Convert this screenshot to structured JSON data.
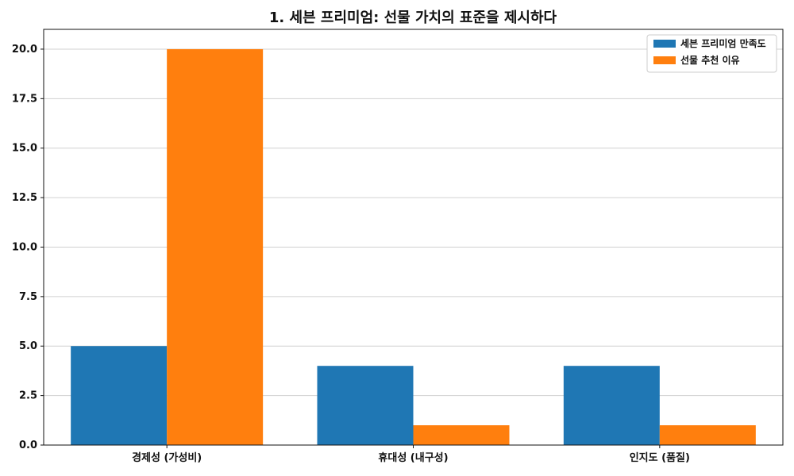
{
  "chart_data": {
    "type": "bar",
    "title": "1. 세븐 프리미엄: 선물 가치의 표준을 제시하다",
    "xlabel": "",
    "ylabel": "",
    "categories": [
      "경제성 (가성비)",
      "휴대성 (내구성)",
      "인지도 (품질)"
    ],
    "series": [
      {
        "name": "세븐 프리미엄 만족도",
        "values": [
          5,
          4,
          4
        ],
        "color": "#1f77b4"
      },
      {
        "name": "선물 추천 이유",
        "values": [
          20,
          1,
          1
        ],
        "color": "#ff7f0e"
      }
    ],
    "ylim": [
      0,
      21
    ],
    "yticks": [
      0,
      2.5,
      5,
      7.5,
      10,
      12.5,
      15,
      17.5,
      20
    ],
    "grid": "y",
    "legend_position": "top-right"
  }
}
